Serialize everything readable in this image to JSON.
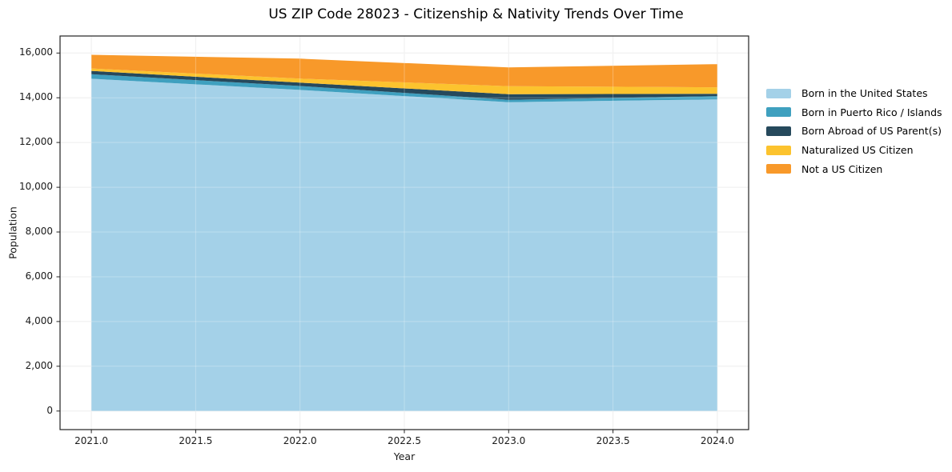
{
  "title": "US ZIP Code 28023 - Citizenship & Nativity Trends Over Time",
  "chart_data": {
    "type": "area",
    "stacked": true,
    "title": "US ZIP Code 28023 - Citizenship & Nativity Trends Over Time",
    "xlabel": "Year",
    "ylabel": "Population",
    "x": [
      2021,
      2022,
      2023,
      2024
    ],
    "series": [
      {
        "name": "Born in the United States",
        "color": "#a4d1e8",
        "values": [
          14850,
          14350,
          13800,
          13930
        ]
      },
      {
        "name": "Born in Puerto Rico / Islands",
        "color": "#3fa0bf",
        "values": [
          200,
          175,
          110,
          145
        ]
      },
      {
        "name": "Born Abroad of US Parent(s)",
        "color": "#26495c",
        "values": [
          150,
          150,
          250,
          105
        ]
      },
      {
        "name": "Naturalized US Citizen",
        "color": "#fcc32e",
        "values": [
          110,
          180,
          360,
          290
        ]
      },
      {
        "name": "Not a US Citizen",
        "color": "#f8992a",
        "values": [
          610,
          895,
          835,
          1030
        ]
      }
    ],
    "totals": [
      15920,
      15750,
      15355,
      15500
    ],
    "xlim": [
      2020.85,
      2024.15
    ],
    "ylim": [
      -830,
      16760
    ],
    "x_ticks": {
      "values": [
        2021.0,
        2021.5,
        2022.0,
        2022.5,
        2023.0,
        2023.5,
        2024.0
      ],
      "labels": [
        "2021.0",
        "2021.5",
        "2022.0",
        "2022.5",
        "2023.0",
        "2023.5",
        "2024.0"
      ]
    },
    "y_ticks": {
      "values": [
        0,
        2000,
        4000,
        6000,
        8000,
        10000,
        12000,
        14000,
        16000
      ],
      "labels": [
        "0",
        "2,000",
        "4,000",
        "6,000",
        "8,000",
        "10,000",
        "12,000",
        "14,000",
        "16,000"
      ]
    },
    "grid": true,
    "legend_position": "right",
    "frame_color": "#222222",
    "grid_color": "#e9e9e9",
    "background_color": "#ffffff"
  }
}
